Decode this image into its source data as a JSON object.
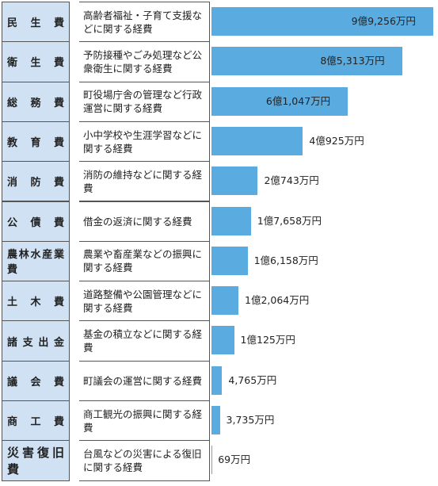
{
  "chart_data": {
    "type": "bar",
    "orientation": "horizontal",
    "categories": [
      "民生費",
      "衛生費",
      "総務費",
      "教育費",
      "消防費",
      "公債費",
      "農林水産業費",
      "土木費",
      "諸支出金",
      "議会費",
      "商工費",
      "災害復旧費"
    ],
    "descriptions": [
      "高齢者福祉・子育て支援などに関する経費",
      "予防接種やごみ処理など公衆衛生に関する経費",
      "町役場庁舎の管理など行政運営に関する経費",
      "小中学校や生涯学習などに関する経費",
      "消防の維持などに関する経費",
      "借金の返済に関する経費",
      "農業や畜産業などの振興に関する経費",
      "道路整備や公園管理などに関する経費",
      "基金の積立などに関する経費",
      "町議会の運営に関する経費",
      "商工観光の振興に関する経費",
      "台風などの災害による復旧に関する経費"
    ],
    "values": [
      99256,
      85313,
      61047,
      40925,
      20743,
      17658,
      16158,
      12064,
      10125,
      4765,
      3735,
      69
    ],
    "value_labels": [
      "9億9,256万円",
      "8億5,313万円",
      "6億1,047万円",
      "4億925万円",
      "2億743万円",
      "1億7,658万円",
      "1億6,158万円",
      "1億2,064万円",
      "1億125万円",
      "4,765万円",
      "3,735万円",
      "69万円"
    ],
    "color": "#5aabdf",
    "xlim": [
      0,
      100000
    ]
  }
}
